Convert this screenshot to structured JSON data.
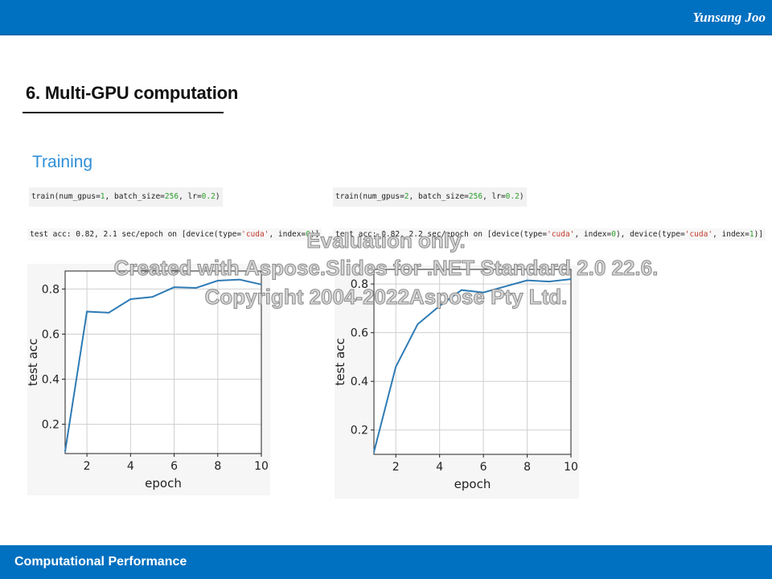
{
  "header": {
    "author": "Yunsang Joo"
  },
  "slide": {
    "title": "6. Multi-GPU computation",
    "section": "Training"
  },
  "left_run": {
    "call": {
      "func": "train(num_gpus=",
      "gpus": "1",
      "mid": ", batch_size=",
      "batch": "256",
      "lr_label": ", lr=",
      "lr": "0.2",
      "end": ")"
    },
    "output": {
      "prefix": "test acc: 0.82, 2.1 sec/epoch on [device(type=",
      "type": "'cuda'",
      "mid": ", index=",
      "index": "0",
      "end": ")]"
    }
  },
  "right_run": {
    "call": {
      "func": "train(num_gpus=",
      "gpus": "2",
      "mid": ", batch_size=",
      "batch": "256",
      "lr_label": ", lr=",
      "lr": "0.2",
      "end": ")"
    },
    "output": {
      "prefix": "test acc: 0.82, 2.2 sec/epoch on [device(type=",
      "type1": "'cuda'",
      "mid1": ", index=",
      "index1": "0",
      "sep": "), device(type=",
      "type2": "'cuda'",
      "mid2": ", index=",
      "index2": "1",
      "end": ")]"
    }
  },
  "chart_data": [
    {
      "type": "line",
      "xlabel": "epoch",
      "ylabel": "test acc",
      "xlim": [
        1,
        10
      ],
      "ylim": [
        0.07,
        0.88
      ],
      "xticks": [
        2,
        4,
        6,
        8,
        10
      ],
      "yticks": [
        0.2,
        0.4,
        0.6,
        0.8
      ],
      "grid": true,
      "line_color": "#2e7bb5",
      "x": [
        1,
        2,
        3,
        4,
        5,
        6,
        7,
        8,
        9,
        10
      ],
      "y": [
        0.08,
        0.7,
        0.695,
        0.755,
        0.765,
        0.808,
        0.805,
        0.837,
        0.842,
        0.82
      ]
    },
    {
      "type": "line",
      "xlabel": "epoch",
      "ylabel": "test acc",
      "xlim": [
        1,
        10
      ],
      "ylim": [
        0.1,
        0.86
      ],
      "xticks": [
        2,
        4,
        6,
        8,
        10
      ],
      "yticks": [
        0.2,
        0.4,
        0.6,
        0.8
      ],
      "grid": true,
      "line_color": "#2e7bb5",
      "x": [
        1,
        2,
        3,
        4,
        5,
        6,
        7,
        8,
        9,
        10
      ],
      "y": [
        0.11,
        0.46,
        0.635,
        0.71,
        0.775,
        0.765,
        0.79,
        0.815,
        0.81,
        0.82
      ]
    }
  ],
  "watermark": {
    "line1": "Evaluation only.",
    "line2": "Created with Aspose.Slides for .NET Standard 2.0 22.6.",
    "line3": "Copyright 2004-2022Aspose Pty Ltd."
  },
  "footer": {
    "text": "Computational Performance"
  }
}
